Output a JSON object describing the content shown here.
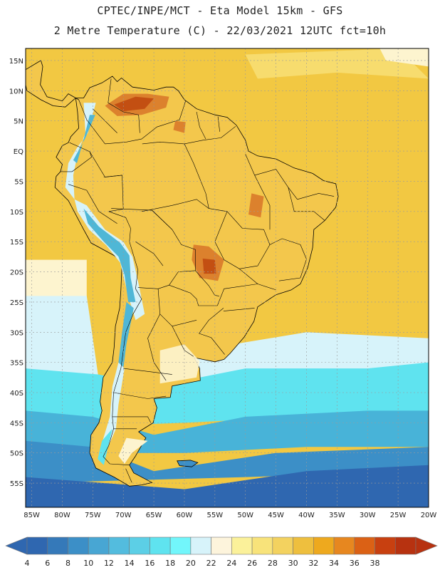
{
  "header": {
    "line1": "CPTEC/INPE/MCT -  Eta Model 15km - GFS",
    "line2": "2 Metre Temperature (C) - 22/03/2021 12UTC fct=10h"
  },
  "map": {
    "lon_range": [
      -86,
      -20
    ],
    "lat_range": [
      -59,
      17
    ],
    "lat_ticks": [
      {
        "lat": 15,
        "label": "15N"
      },
      {
        "lat": 10,
        "label": "10N"
      },
      {
        "lat": 5,
        "label": "5N"
      },
      {
        "lat": 0,
        "label": "EQ"
      },
      {
        "lat": -5,
        "label": "5S"
      },
      {
        "lat": -10,
        "label": "10S"
      },
      {
        "lat": -15,
        "label": "15S"
      },
      {
        "lat": -20,
        "label": "20S"
      },
      {
        "lat": -25,
        "label": "25S"
      },
      {
        "lat": -30,
        "label": "30S"
      },
      {
        "lat": -35,
        "label": "35S"
      },
      {
        "lat": -40,
        "label": "40S"
      },
      {
        "lat": -45,
        "label": "45S"
      },
      {
        "lat": -50,
        "label": "50S"
      },
      {
        "lat": -55,
        "label": "55S"
      }
    ],
    "lon_ticks": [
      {
        "lon": -85,
        "label": "85W"
      },
      {
        "lon": -80,
        "label": "80W"
      },
      {
        "lon": -75,
        "label": "75W"
      },
      {
        "lon": -70,
        "label": "70W"
      },
      {
        "lon": -65,
        "label": "65W"
      },
      {
        "lon": -60,
        "label": "60W"
      },
      {
        "lon": -55,
        "label": "55W"
      },
      {
        "lon": -50,
        "label": "50W"
      },
      {
        "lon": -45,
        "label": "45W"
      },
      {
        "lon": -40,
        "label": "40W"
      },
      {
        "lon": -35,
        "label": "35W"
      },
      {
        "lon": -30,
        "label": "30W"
      },
      {
        "lon": -25,
        "label": "25W"
      },
      {
        "lon": -20,
        "label": "20W"
      }
    ],
    "colors": {
      "ocean_warm": "#f2c842",
      "ocean_cool": "#f7dc6e",
      "land": "#f3c74c",
      "andes": "#4fb7d6",
      "hot": "#d9792a",
      "very_hot": "#c0490f",
      "pale": "#fdf4cf",
      "light_cyan": "#d7f3fa",
      "cyan": "#5fe3ef",
      "mid_blue": "#48b3d8",
      "blue": "#3c8fc7",
      "deep_blue": "#2f67b0",
      "border": "#000000",
      "grid": "#9a9a9a"
    }
  },
  "colorbar": {
    "levels": [
      4,
      6,
      8,
      10,
      12,
      14,
      16,
      18,
      20,
      22,
      24,
      26,
      28,
      30,
      32,
      34,
      36,
      38
    ],
    "colors": [
      "#2f67b0",
      "#3579b9",
      "#3c8fc7",
      "#48a6d3",
      "#53bcde",
      "#5ccfe6",
      "#5fe3ef",
      "#72f6fb",
      "#d7f3fa",
      "#fdf4dc",
      "#fbf19a",
      "#f8e37a",
      "#f3d25f",
      "#eebf3e",
      "#eea91e",
      "#e7871f",
      "#db6115",
      "#c84010",
      "#b73210"
    ],
    "low_end_color": "#2f67b0",
    "high_end_color": "#b73210"
  }
}
